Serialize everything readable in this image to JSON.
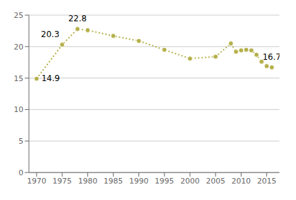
{
  "chart_data": {
    "type": "line",
    "x": [
      1970,
      1975,
      1978,
      1980,
      1985,
      1990,
      1995,
      2000,
      2005,
      2008,
      2009,
      2010,
      2011,
      2012,
      2013,
      2014,
      2015,
      2016
    ],
    "values": [
      14.9,
      20.3,
      22.8,
      22.6,
      21.7,
      20.9,
      19.5,
      18.1,
      18.4,
      20.5,
      19.2,
      19.4,
      19.5,
      19.4,
      18.7,
      17.6,
      16.9,
      16.7
    ],
    "color": "#b5b04a",
    "line_style": "dotted",
    "marker": "circle",
    "xlim": [
      1968.5,
      2017.5
    ],
    "ylim": [
      0,
      25
    ],
    "xticks": [
      1970,
      1975,
      1980,
      1985,
      1990,
      1995,
      2000,
      2005,
      2010,
      2015
    ],
    "yticks": [
      0,
      5,
      10,
      15,
      20,
      25
    ],
    "grid": true,
    "annotations": [
      {
        "x": 1970,
        "y": 14.9,
        "text": "14.9"
      },
      {
        "x": 1978,
        "y": 22.8,
        "text": "22.8"
      },
      {
        "x": 1975,
        "y": 20.3,
        "text": "20.3"
      },
      {
        "x": 2016,
        "y": 16.7,
        "text": "16.7"
      }
    ]
  }
}
